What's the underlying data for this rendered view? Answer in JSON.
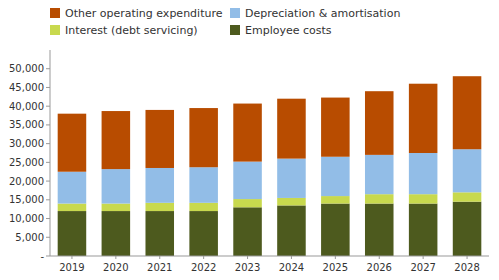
{
  "chart_data": {
    "type": "bar",
    "stacked": true,
    "legend": "top",
    "categories": [
      "2019",
      "2020",
      "2021",
      "2022",
      "2023",
      "2024",
      "2025",
      "2026",
      "2027",
      "2028"
    ],
    "series": [
      {
        "name": "Employee costs",
        "color": "#4d5a1e",
        "values": [
          12000,
          12000,
          12000,
          12000,
          13000,
          13500,
          14000,
          14000,
          14000,
          14500
        ]
      },
      {
        "name": "Interest (debt servicing)",
        "color": "#c8d94e",
        "values": [
          2000,
          2000,
          2200,
          2200,
          2200,
          2000,
          2000,
          2500,
          2500,
          2500
        ]
      },
      {
        "name": "Depreciation & amortisation",
        "color": "#92bde7",
        "values": [
          8500,
          9200,
          9300,
          9500,
          10000,
          10500,
          10500,
          10500,
          11000,
          11500
        ]
      },
      {
        "name": "Other operating expenditure",
        "color": "#b84c00",
        "values": [
          15500,
          15500,
          15500,
          15800,
          15500,
          16000,
          15800,
          17000,
          18500,
          19500
        ]
      }
    ],
    "ylim": [
      0,
      55000
    ],
    "yticks": [
      {
        "value": 0,
        "label": "-"
      },
      {
        "value": 5000,
        "label": "5,000"
      },
      {
        "value": 10000,
        "label": "10,000"
      },
      {
        "value": 15000,
        "label": "15,000"
      },
      {
        "value": 20000,
        "label": "20,000"
      },
      {
        "value": 25000,
        "label": "25,000"
      },
      {
        "value": 30000,
        "label": "30,000"
      },
      {
        "value": 35000,
        "label": "35,000"
      },
      {
        "value": 40000,
        "label": "40,000"
      },
      {
        "value": 45000,
        "label": "45,000"
      },
      {
        "value": 50000,
        "label": "50,000"
      }
    ]
  }
}
